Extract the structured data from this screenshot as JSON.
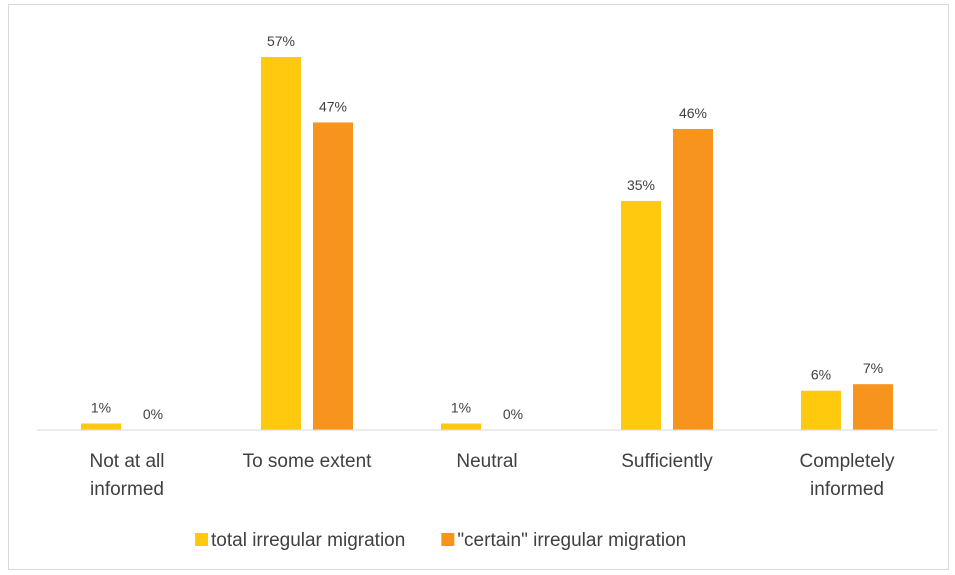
{
  "chart_data": {
    "type": "bar",
    "categories": [
      [
        "Not at all",
        "informed"
      ],
      [
        "To some extent"
      ],
      [
        "Neutral"
      ],
      [
        "Sufficiently"
      ],
      [
        "Completely",
        "informed"
      ]
    ],
    "series": [
      {
        "name": "total irregular migration",
        "color": "#FFC90E",
        "values": [
          1,
          57,
          1,
          35,
          6
        ],
        "labels": [
          "1%",
          "57%",
          "1%",
          "35%",
          "6%"
        ]
      },
      {
        "name": "\"certain\" irregular migration",
        "color": "#F7941D",
        "values": [
          0,
          47,
          0,
          46,
          7
        ],
        "labels": [
          "0%",
          "47%",
          "0%",
          "46%",
          "7%"
        ]
      }
    ],
    "ylim": [
      0,
      57
    ],
    "grid": false,
    "legend_position": "bottom"
  }
}
